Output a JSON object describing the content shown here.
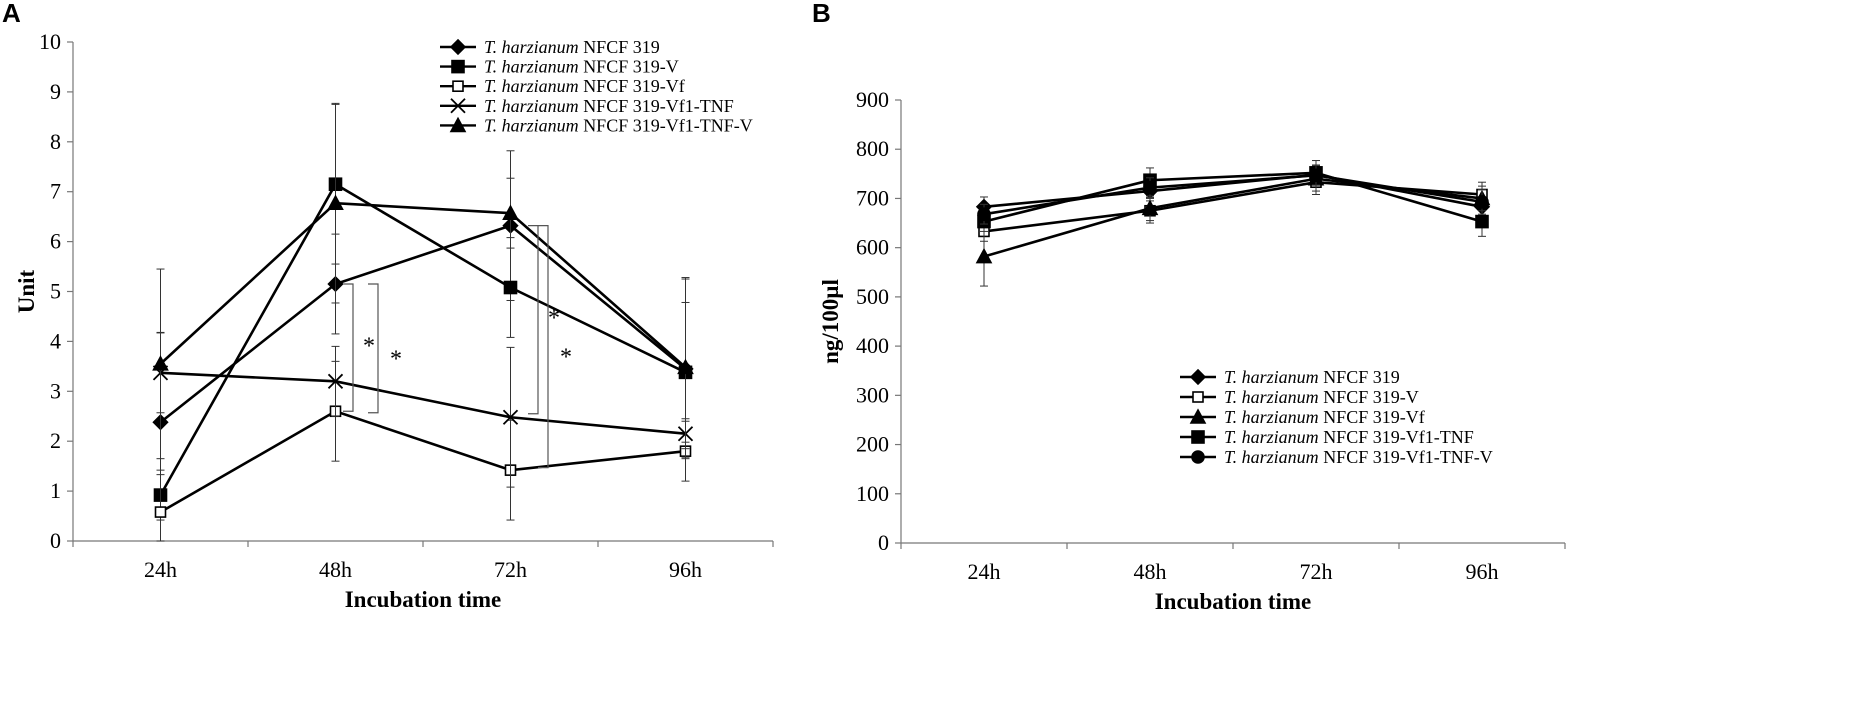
{
  "chart_data": [
    {
      "panel": "A",
      "type": "line",
      "title": "",
      "xlabel": "Incubation time",
      "ylabel": "Unit",
      "categories": [
        "24h",
        "48h",
        "72h",
        "96h"
      ],
      "ylim": [
        0,
        10
      ],
      "yticks": [
        "0",
        "1",
        "2",
        "3",
        "4",
        "5",
        "6",
        "7",
        "8",
        "9",
        "10"
      ],
      "grid": false,
      "legend_position": "top-right",
      "series": [
        {
          "species": "T. harzianum",
          "strain": "NFCF 319",
          "marker": "diamond-filled",
          "values": [
            2.38,
            5.15,
            6.32,
            3.45
          ],
          "errors": [
            1.8,
            1.0,
            1.5,
            1.8
          ]
        },
        {
          "species": "T. harzianum",
          "strain": "NFCF 319-V",
          "marker": "square-filled",
          "values": [
            0.92,
            7.15,
            5.08,
            3.38
          ],
          "errors": [
            0.5,
            1.6,
            1.0,
            1.4
          ]
        },
        {
          "species": "T. harzianum",
          "strain": "NFCF 319-Vf",
          "marker": "square-open",
          "values": [
            0.58,
            2.6,
            1.42,
            1.8
          ],
          "errors": [
            0.75,
            1.0,
            1.0,
            0.6
          ]
        },
        {
          "species": "T. harzianum",
          "strain": "NFCF 319-Vf1-TNF",
          "marker": "x",
          "values": [
            3.37,
            3.2,
            2.48,
            2.15
          ],
          "errors": [
            0.8,
            0.7,
            1.4,
            0.3
          ]
        },
        {
          "species": "T. harzianum",
          "strain": "NFCF 319-Vf1-TNF-V",
          "marker": "triangle-filled",
          "values": [
            3.55,
            6.77,
            6.57,
            3.48
          ],
          "errors": [
            1.9,
            2.0,
            0.7,
            1.8
          ]
        }
      ],
      "annotations": [
        {
          "text": "*",
          "x": "48h",
          "bracket_from": 5.15,
          "bracket_to": 2.6
        },
        {
          "text": "*",
          "x": "48h",
          "bracket_from": 5.15,
          "bracket_to": 2.57
        },
        {
          "text": "*",
          "x": "72h",
          "bracket_from": 6.32,
          "bracket_to": 2.55
        },
        {
          "text": "*",
          "x": "72h",
          "bracket_from": 6.32,
          "bracket_to": 1.47
        }
      ]
    },
    {
      "panel": "B",
      "type": "line",
      "title": "",
      "xlabel": "Incubation time",
      "ylabel": "ng/100µl",
      "categories": [
        "24h",
        "48h",
        "72h",
        "96h"
      ],
      "ylim": [
        0,
        900
      ],
      "yticks": [
        "0",
        "100",
        "200",
        "300",
        "400",
        "500",
        "600",
        "700",
        "800",
        "900"
      ],
      "grid": false,
      "legend_position": "bottom-right",
      "series": [
        {
          "species": "T. harzianum",
          "strain": "NFCF 319",
          "marker": "diamond-filled",
          "values": [
            683,
            715,
            748,
            683
          ],
          "errors": [
            20,
            20,
            20,
            25
          ]
        },
        {
          "species": "T. harzianum",
          "strain": "NFCF 319-V",
          "marker": "square-open",
          "values": [
            633,
            675,
            733,
            708
          ],
          "errors": [
            20,
            25,
            25,
            25
          ]
        },
        {
          "species": "T. harzianum",
          "strain": "NFCF 319-Vf",
          "marker": "triangle-filled",
          "values": [
            582,
            680,
            740,
            700
          ],
          "errors": [
            60,
            25,
            25,
            25
          ]
        },
        {
          "species": "T. harzianum",
          "strain": "NFCF 319-Vf1-TNF",
          "marker": "square-filled",
          "values": [
            653,
            737,
            752,
            653
          ],
          "errors": [
            20,
            25,
            25,
            30
          ]
        },
        {
          "species": "T. harzianum",
          "strain": "NFCF 319-Vf1-TNF-V",
          "marker": "circle-filled",
          "values": [
            668,
            722,
            747,
            693
          ],
          "errors": [
            20,
            20,
            20,
            25
          ]
        }
      ]
    }
  ]
}
